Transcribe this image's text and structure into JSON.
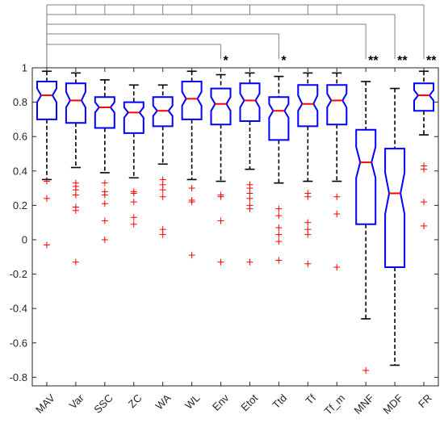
{
  "chart_data": {
    "type": "box",
    "title": "",
    "xlabel": "",
    "ylabel": "",
    "ylim": [
      -0.85,
      1.0
    ],
    "yticks": [
      1,
      0.8,
      0.6,
      0.4,
      0.2,
      0,
      -0.2,
      -0.4,
      -0.6,
      -0.8
    ],
    "ytick_labels": [
      "1",
      "0.8",
      "0.6",
      "0.4",
      "0.2",
      "0",
      "-0.2",
      "-0.4",
      "-0.6",
      "-0.8"
    ],
    "grid": false,
    "categories": [
      "MAV",
      "Var",
      "SSC",
      "ZC",
      "WA",
      "WL",
      "Env",
      "Etot",
      "Ttd",
      "Tf",
      "Tf_m",
      "MNF",
      "MDF",
      "FR"
    ],
    "boxes": [
      {
        "name": "MAV",
        "whisker_low": 0.35,
        "q1": 0.7,
        "median": 0.84,
        "q3": 0.92,
        "whisker_high": 0.98,
        "notch_low": 0.8,
        "notch_high": 0.88,
        "outliers": [
          0.34,
          0.24,
          -0.03
        ]
      },
      {
        "name": "Var",
        "whisker_low": 0.42,
        "q1": 0.68,
        "median": 0.81,
        "q3": 0.91,
        "whisker_high": 0.97,
        "notch_low": 0.77,
        "notch_high": 0.86,
        "outliers": [
          0.33,
          0.31,
          0.29,
          0.26,
          0.19,
          0.17,
          -0.13
        ]
      },
      {
        "name": "SSC",
        "whisker_low": 0.39,
        "q1": 0.65,
        "median": 0.77,
        "q3": 0.83,
        "whisker_high": 0.93,
        "notch_low": 0.74,
        "notch_high": 0.8,
        "outliers": [
          0.33,
          0.28,
          0.26,
          0.21,
          0.11,
          0.0
        ]
      },
      {
        "name": "ZC",
        "whisker_low": 0.36,
        "q1": 0.62,
        "median": 0.74,
        "q3": 0.8,
        "whisker_high": 0.9,
        "notch_low": 0.71,
        "notch_high": 0.77,
        "outliers": [
          0.28,
          0.27,
          0.22,
          0.13,
          0.09
        ]
      },
      {
        "name": "WA",
        "whisker_low": 0.44,
        "q1": 0.66,
        "median": 0.75,
        "q3": 0.83,
        "whisker_high": 0.9,
        "notch_low": 0.72,
        "notch_high": 0.78,
        "outliers": [
          0.35,
          0.32,
          0.29,
          0.25,
          0.06,
          0.03
        ]
      },
      {
        "name": "WL",
        "whisker_low": 0.35,
        "q1": 0.7,
        "median": 0.82,
        "q3": 0.92,
        "whisker_high": 0.98,
        "notch_low": 0.78,
        "notch_high": 0.86,
        "outliers": [
          0.3,
          0.23,
          0.22,
          -0.09
        ]
      },
      {
        "name": "Env",
        "whisker_low": 0.34,
        "q1": 0.67,
        "median": 0.79,
        "q3": 0.88,
        "whisker_high": 0.96,
        "notch_low": 0.75,
        "notch_high": 0.83,
        "outliers": [
          0.26,
          0.25,
          0.11,
          -0.13
        ]
      },
      {
        "name": "Etot",
        "whisker_low": 0.41,
        "q1": 0.69,
        "median": 0.81,
        "q3": 0.91,
        "whisker_high": 0.97,
        "notch_low": 0.77,
        "notch_high": 0.85,
        "outliers": [
          0.32,
          0.3,
          0.27,
          0.24,
          0.2,
          0.18,
          -0.13
        ]
      },
      {
        "name": "Ttd",
        "whisker_low": 0.33,
        "q1": 0.58,
        "median": 0.75,
        "q3": 0.83,
        "whisker_high": 0.95,
        "notch_low": 0.71,
        "notch_high": 0.79,
        "outliers": [
          0.18,
          0.14,
          0.07,
          0.03,
          -0.01,
          -0.12
        ]
      },
      {
        "name": "Tf",
        "whisker_low": 0.34,
        "q1": 0.66,
        "median": 0.79,
        "q3": 0.9,
        "whisker_high": 0.97,
        "notch_low": 0.75,
        "notch_high": 0.84,
        "outliers": [
          0.27,
          0.25,
          0.1,
          0.06,
          0.03,
          -0.14
        ]
      },
      {
        "name": "Tf_m",
        "whisker_low": 0.34,
        "q1": 0.67,
        "median": 0.81,
        "q3": 0.9,
        "whisker_high": 0.97,
        "notch_low": 0.77,
        "notch_high": 0.85,
        "outliers": [
          0.25,
          0.15,
          -0.16
        ]
      },
      {
        "name": "MNF",
        "whisker_low": -0.46,
        "q1": 0.09,
        "median": 0.45,
        "q3": 0.64,
        "whisker_high": 0.92,
        "notch_low": 0.36,
        "notch_high": 0.54,
        "outliers": [
          -0.76
        ]
      },
      {
        "name": "MDF",
        "whisker_low": -0.73,
        "q1": -0.16,
        "median": 0.27,
        "q3": 0.53,
        "whisker_high": 0.88,
        "notch_low": 0.15,
        "notch_high": 0.39,
        "outliers": []
      },
      {
        "name": "FR",
        "whisker_low": 0.61,
        "q1": 0.75,
        "median": 0.84,
        "q3": 0.91,
        "whisker_high": 0.98,
        "notch_low": 0.81,
        "notch_high": 0.87,
        "outliers": [
          0.43,
          0.41,
          0.22,
          0.08
        ]
      }
    ],
    "significance": [
      {
        "from": "MAV",
        "to": "Env",
        "label": "*"
      },
      {
        "from": "MAV",
        "to": "Ttd",
        "label": "*"
      },
      {
        "from": "MAV",
        "to": "MNF",
        "label": "**"
      },
      {
        "from": "MAV",
        "to": "MDF",
        "label": "**"
      },
      {
        "from": "MAV",
        "to": "FR",
        "label": "**"
      }
    ],
    "colors": {
      "box": "#0000ff",
      "median": "#ff0000",
      "outlier": "#ff0000",
      "whisker": "#000000",
      "bracket": "#808080",
      "axis": "#262626"
    }
  }
}
